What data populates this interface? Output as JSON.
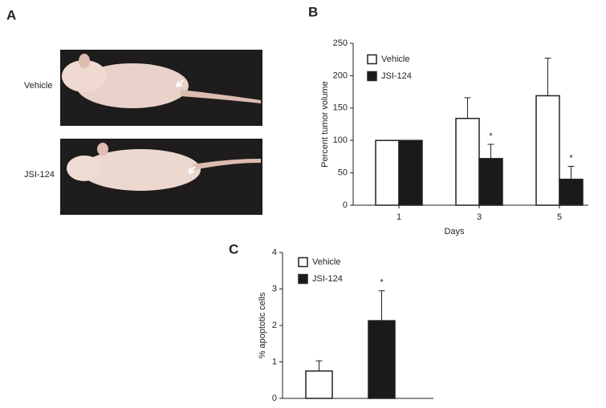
{
  "panel_a": {
    "label": "A",
    "rows": [
      "Vehicle",
      "JSI-124"
    ]
  },
  "chart_data": [
    {
      "type": "bar",
      "panel": "B",
      "categories": [
        "1",
        "3",
        "5"
      ],
      "series": [
        {
          "name": "Vehicle",
          "color": "#ffffff",
          "values": [
            100,
            134,
            169
          ],
          "errors": [
            0,
            32,
            58
          ],
          "annotations": [
            null,
            null,
            null
          ]
        },
        {
          "name": "JSI-124",
          "color": "#1a1a1a",
          "values": [
            100,
            72,
            40
          ],
          "errors": [
            0,
            22,
            20
          ],
          "annotations": [
            null,
            "*",
            "*"
          ]
        }
      ],
      "ylim": [
        0,
        250
      ],
      "yticks": [
        0,
        50,
        100,
        150,
        200,
        250
      ],
      "xlabel": "Days",
      "ylabel": "Percent tumor volume",
      "legend": "upper-left"
    },
    {
      "type": "bar",
      "panel": "C",
      "categories": [
        null
      ],
      "series": [
        {
          "name": "Vehicle",
          "color": "#ffffff",
          "values": [
            0.75
          ],
          "errors": [
            0.28
          ],
          "annotations": [
            null
          ]
        },
        {
          "name": "JSI-124",
          "color": "#1a1a1a",
          "values": [
            2.13
          ],
          "errors": [
            0.82
          ],
          "annotations": [
            "*"
          ]
        }
      ],
      "ylim": [
        0,
        4
      ],
      "yticks": [
        0,
        1,
        2,
        3,
        4
      ],
      "ylabel": "% apoptotic cells",
      "legend": "upper-left"
    }
  ]
}
